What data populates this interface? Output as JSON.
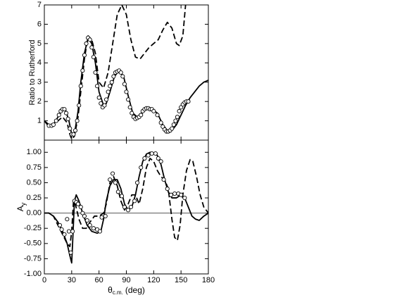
{
  "chart_data": [
    {
      "type": "line",
      "ylabel": "Ratio to Rutherford",
      "xlim": [
        0,
        180
      ],
      "ylim": [
        0,
        7
      ],
      "xticks": [
        0,
        30,
        60,
        90,
        120,
        150,
        180
      ],
      "show_xtick_labels": false,
      "yticks": [
        1,
        2,
        3,
        4,
        5,
        6,
        7
      ],
      "series": [
        {
          "style": "solid",
          "color": "#000000",
          "x": [
            0,
            5,
            10,
            15,
            20,
            23,
            27,
            30,
            33,
            37,
            40,
            44,
            48,
            52,
            56,
            60,
            65,
            68,
            72,
            77,
            82,
            87,
            92,
            97,
            102,
            107,
            112,
            118,
            124,
            130,
            135,
            140,
            145,
            150,
            155,
            160,
            165,
            170,
            175,
            180
          ],
          "values": [
            1.0,
            0.8,
            0.8,
            1.2,
            1.6,
            1.6,
            1.0,
            0.3,
            0.3,
            1.5,
            3.0,
            4.5,
            5.3,
            5.0,
            4.0,
            2.5,
            1.8,
            1.9,
            2.5,
            3.3,
            3.6,
            3.3,
            2.3,
            1.4,
            1.2,
            1.4,
            1.6,
            1.6,
            1.4,
            0.8,
            0.5,
            0.5,
            0.8,
            1.3,
            1.8,
            2.2,
            2.5,
            2.8,
            3.0,
            3.1
          ]
        },
        {
          "style": "dashed",
          "color": "#000000",
          "x": [
            0,
            5,
            10,
            15,
            20,
            25,
            28,
            30,
            33,
            37,
            40,
            44,
            48,
            52,
            56,
            60,
            65,
            70,
            75,
            80,
            85,
            90,
            95,
            100,
            105,
            110,
            115,
            120,
            125,
            130,
            135,
            140,
            145,
            148,
            152,
            155
          ],
          "values": [
            1.0,
            0.7,
            0.8,
            1.0,
            1.2,
            0.9,
            0.3,
            0.05,
            0.2,
            1.2,
            2.5,
            4.2,
            5.4,
            5.2,
            4.5,
            3.0,
            2.7,
            3.5,
            5.0,
            6.5,
            7.0,
            6.5,
            5.2,
            4.3,
            4.2,
            4.5,
            4.8,
            5.0,
            5.2,
            5.7,
            6.1,
            5.8,
            5.0,
            4.9,
            5.4,
            7.0
          ]
        },
        {
          "style": "markers",
          "color": "#000000",
          "x": [
            5,
            8,
            10,
            13,
            16,
            18,
            20,
            22,
            24,
            26,
            28,
            30,
            32,
            34,
            36,
            38,
            40,
            42,
            44,
            46,
            48,
            50,
            52,
            54,
            56,
            58,
            60,
            62,
            64,
            66,
            68,
            70,
            72,
            74,
            76,
            78,
            80,
            82,
            84,
            86,
            88,
            90,
            92,
            94,
            96,
            98,
            100,
            102,
            104,
            106,
            108,
            110,
            112,
            114,
            116,
            118,
            120,
            124,
            128,
            130,
            132,
            134,
            136,
            138,
            140,
            142,
            144,
            146,
            148,
            150,
            152,
            154,
            156,
            158
          ],
          "values": [
            0.75,
            0.75,
            0.8,
            1.0,
            1.3,
            1.5,
            1.6,
            1.6,
            1.4,
            1.1,
            0.6,
            0.3,
            0.3,
            0.5,
            1.0,
            1.8,
            2.8,
            3.6,
            4.4,
            5.0,
            5.3,
            5.2,
            4.8,
            4.3,
            3.5,
            2.8,
            2.2,
            1.9,
            1.7,
            1.8,
            2.1,
            2.5,
            2.8,
            3.0,
            3.3,
            3.5,
            3.55,
            3.6,
            3.5,
            3.3,
            2.9,
            2.5,
            2.1,
            1.7,
            1.4,
            1.2,
            1.1,
            1.15,
            1.2,
            1.3,
            1.5,
            1.6,
            1.65,
            1.65,
            1.6,
            1.6,
            1.5,
            1.3,
            0.9,
            0.7,
            0.55,
            0.45,
            0.45,
            0.5,
            0.6,
            0.8,
            1.0,
            1.2,
            1.5,
            1.7,
            1.85,
            1.95,
            2.0,
            2.0
          ]
        }
      ]
    },
    {
      "type": "line",
      "ylabel": "A",
      "ylabel_sub": "y",
      "xlabel": "θ",
      "xlabel_sub": "c.m.",
      "xlabel_unit": "(deg)",
      "xlim": [
        0,
        180
      ],
      "ylim": [
        -1.0,
        1.2
      ],
      "reference_line": 0,
      "xticks": [
        0,
        30,
        60,
        90,
        120,
        150,
        180
      ],
      "show_xtick_labels": true,
      "yticks": [
        {
          "value": -1,
          "label": "-1.00"
        },
        {
          "value": -0.75,
          "label": "-0.75"
        },
        {
          "value": -0.5,
          "label": "-0.50"
        },
        {
          "value": -0.25,
          "label": "-0.25"
        },
        {
          "value": 0,
          "label": "0.00"
        },
        {
          "value": 0.25,
          "label": "0.25"
        },
        {
          "value": 0.5,
          "label": "0.50"
        },
        {
          "value": 0.75,
          "label": "0.75"
        },
        {
          "value": 1,
          "label": "1.00"
        }
      ],
      "series": [
        {
          "style": "solid",
          "color": "#000000",
          "x": [
            0,
            5,
            10,
            15,
            20,
            25,
            28,
            30,
            31,
            33,
            35,
            38,
            42,
            47,
            52,
            58,
            62,
            65,
            68,
            72,
            76,
            80,
            84,
            88,
            92,
            96,
            100,
            104,
            108,
            112,
            116,
            120,
            124,
            128,
            132,
            136,
            140,
            145,
            150,
            154,
            158,
            162,
            166,
            170,
            175,
            180
          ],
          "values": [
            0.0,
            0.0,
            -0.05,
            -0.15,
            -0.3,
            -0.5,
            -0.7,
            -0.82,
            -0.5,
            0.2,
            0.3,
            0.2,
            0.0,
            -0.2,
            -0.3,
            -0.33,
            -0.3,
            -0.1,
            0.2,
            0.45,
            0.55,
            0.55,
            0.4,
            0.15,
            0.05,
            0.1,
            0.3,
            0.6,
            0.85,
            0.97,
            1.0,
            0.98,
            0.95,
            0.8,
            0.55,
            0.35,
            0.25,
            0.25,
            0.3,
            0.25,
            0.1,
            -0.05,
            -0.1,
            -0.12,
            -0.05,
            0.0
          ]
        },
        {
          "style": "dashed",
          "color": "#000000",
          "x": [
            0,
            5,
            10,
            15,
            20,
            25,
            28,
            30,
            32,
            34,
            38,
            42,
            46,
            50,
            55,
            60,
            65,
            68,
            72,
            76,
            80,
            84,
            88,
            92,
            96,
            100,
            104,
            108,
            112,
            116,
            120,
            124,
            128,
            132,
            136,
            140,
            143,
            146,
            149,
            152,
            156,
            160,
            163,
            167,
            171,
            175,
            180
          ],
          "values": [
            0.0,
            0.0,
            -0.05,
            -0.2,
            -0.35,
            -0.5,
            -0.55,
            -0.3,
            0.2,
            0.15,
            -0.1,
            -0.25,
            -0.25,
            -0.15,
            -0.05,
            -0.05,
            0.0,
            0.15,
            0.5,
            0.6,
            0.45,
            0.2,
            0.05,
            0.15,
            0.3,
            0.3,
            0.15,
            0.4,
            0.75,
            0.9,
            0.85,
            0.7,
            0.6,
            0.55,
            0.4,
            -0.1,
            -0.4,
            -0.45,
            -0.2,
            0.3,
            0.7,
            0.88,
            0.85,
            0.6,
            0.3,
            0.1,
            0.0
          ]
        },
        {
          "style": "markers",
          "color": "#000000",
          "x": [
            17,
            19,
            22,
            25,
            27,
            29,
            31,
            33,
            35,
            37,
            40,
            42,
            44,
            47,
            50,
            54,
            58,
            61,
            63,
            67,
            72,
            75,
            78,
            81,
            85,
            88,
            92,
            95,
            99,
            102,
            106,
            110,
            114,
            118,
            122,
            125,
            128,
            131,
            135,
            139,
            143,
            147,
            150,
            154
          ],
          "values": [
            -0.2,
            -0.27,
            -0.35,
            -0.1,
            -0.3,
            -0.65,
            -0.3,
            0.2,
            0.18,
            0.15,
            0.1,
            0.0,
            -0.05,
            -0.12,
            -0.2,
            -0.25,
            -0.27,
            -0.3,
            -0.07,
            -0.05,
            0.55,
            0.65,
            0.5,
            0.35,
            0.28,
            0.1,
            0.05,
            0.1,
            0.2,
            0.5,
            0.75,
            0.9,
            0.95,
            0.98,
            0.98,
            0.9,
            0.85,
            0.55,
            0.4,
            0.3,
            0.32,
            0.32,
            0.3,
            0.25
          ]
        }
      ]
    }
  ]
}
